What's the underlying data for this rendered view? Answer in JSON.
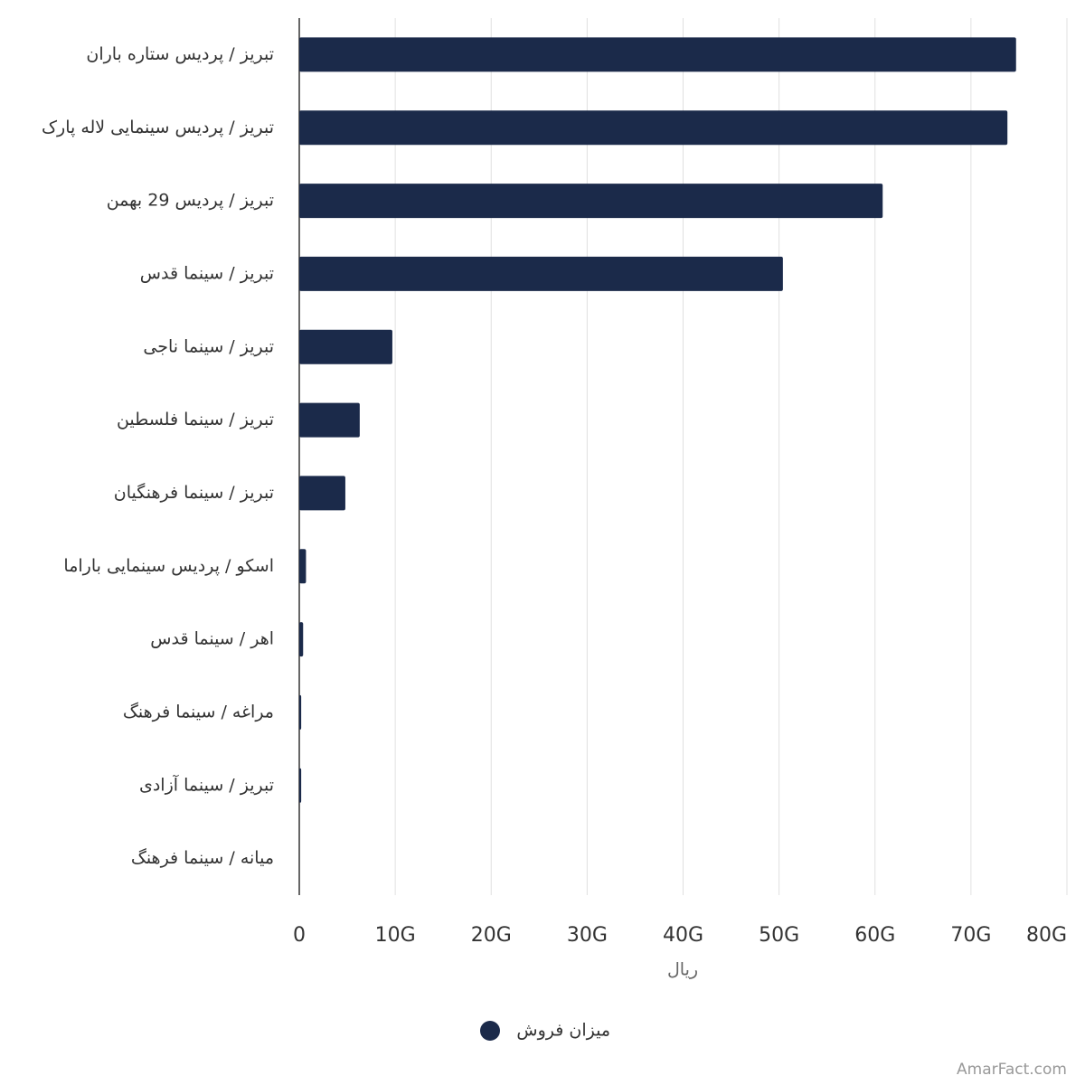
{
  "chart_data": {
    "type": "bar",
    "orientation": "horizontal",
    "categories": [
      "تبریز / پردیس ستاره باران",
      "تبریز / پردیس سینمایی لاله پارک",
      "تبریز / پردیس 29 بهمن",
      "تبریز / سینما قدس",
      "تبریز / سینما ناجی",
      "تبریز / سینما فلسطین",
      "تبریز / سینما فرهنگیان",
      "اسکو / پردیس سینمایی باراما",
      "اهر / سینما قدس",
      "مراغه / سینما فرهنگ",
      "تبریز / سینما آزادی",
      "میانه / سینما فرهنگ"
    ],
    "series": [
      {
        "name": "میزان فروش",
        "color": "#1b2a4a",
        "values": [
          74700000000,
          73800000000,
          60800000000,
          50400000000,
          9700000000,
          6300000000,
          4800000000,
          700000000,
          400000000,
          200000000,
          200000000,
          0
        ]
      }
    ],
    "xlabel": "ریال",
    "xlim": [
      0,
      80000000000
    ],
    "xticks": [
      0,
      {
        "value": 10000000000,
        "label": "10G"
      },
      {
        "value": 20000000000,
        "label": "20G"
      },
      {
        "value": 30000000000,
        "label": "30G"
      },
      {
        "value": 40000000000,
        "label": "40G"
      },
      {
        "value": 50000000000,
        "label": "50G"
      },
      {
        "value": 60000000000,
        "label": "60G"
      },
      {
        "value": 70000000000,
        "label": "70G"
      },
      {
        "value": 80000000000,
        "label": "80G"
      }
    ],
    "grid": true,
    "legend": "bottom"
  },
  "watermark": "AmarFact.com"
}
